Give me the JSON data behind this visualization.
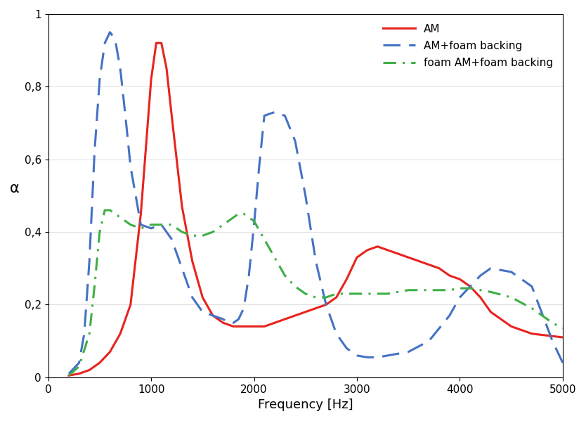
{
  "title": "",
  "xlabel": "Frequency [Hz]",
  "ylabel": "α",
  "xlim": [
    0,
    5000
  ],
  "ylim": [
    0,
    1
  ],
  "xticks": [
    0,
    1000,
    2000,
    3000,
    4000,
    5000
  ],
  "yticks": [
    0,
    0.2,
    0.4,
    0.6,
    0.8,
    1
  ],
  "ytick_labels": [
    "0",
    "0,2",
    "0,4",
    "0,6",
    "0,8",
    "1"
  ],
  "AM_x": [
    200,
    300,
    400,
    500,
    600,
    700,
    800,
    900,
    1000,
    1050,
    1100,
    1150,
    1200,
    1300,
    1400,
    1500,
    1600,
    1700,
    1800,
    1900,
    2000,
    2100,
    2200,
    2300,
    2500,
    2700,
    2800,
    2900,
    3000,
    3100,
    3200,
    3300,
    3400,
    3500,
    3600,
    3700,
    3800,
    3900,
    4000,
    4100,
    4200,
    4300,
    4500,
    4700,
    5000
  ],
  "AM_y": [
    0.005,
    0.01,
    0.02,
    0.04,
    0.07,
    0.12,
    0.2,
    0.45,
    0.82,
    0.92,
    0.92,
    0.85,
    0.72,
    0.47,
    0.32,
    0.22,
    0.17,
    0.15,
    0.14,
    0.14,
    0.14,
    0.14,
    0.15,
    0.16,
    0.18,
    0.2,
    0.22,
    0.27,
    0.33,
    0.35,
    0.36,
    0.35,
    0.34,
    0.33,
    0.32,
    0.31,
    0.3,
    0.28,
    0.27,
    0.25,
    0.22,
    0.18,
    0.14,
    0.12,
    0.11
  ],
  "foam_x": [
    200,
    300,
    400,
    450,
    500,
    550,
    600,
    650,
    700,
    750,
    800,
    900,
    1000,
    1100,
    1200,
    1300,
    1400,
    1500,
    1600,
    1700,
    1800,
    1850,
    1900,
    1950,
    2000,
    2100,
    2200,
    2300,
    2400,
    2500,
    2600,
    2700,
    2800,
    2900,
    3000,
    3100,
    3200,
    3300,
    3500,
    3700,
    3900,
    4000,
    4100,
    4200,
    4300,
    4500,
    4700,
    4900,
    5000
  ],
  "foam_y": [
    0.005,
    0.03,
    0.12,
    0.25,
    0.4,
    0.46,
    0.46,
    0.45,
    0.44,
    0.43,
    0.42,
    0.41,
    0.42,
    0.42,
    0.42,
    0.4,
    0.39,
    0.39,
    0.4,
    0.42,
    0.44,
    0.45,
    0.45,
    0.44,
    0.43,
    0.38,
    0.33,
    0.28,
    0.25,
    0.23,
    0.22,
    0.22,
    0.23,
    0.23,
    0.23,
    0.23,
    0.23,
    0.23,
    0.24,
    0.24,
    0.24,
    0.245,
    0.245,
    0.24,
    0.235,
    0.22,
    0.19,
    0.15,
    0.135
  ],
  "blue_x": [
    200,
    300,
    350,
    400,
    450,
    500,
    550,
    600,
    650,
    700,
    750,
    800,
    900,
    1000,
    1100,
    1200,
    1300,
    1400,
    1500,
    1600,
    1700,
    1750,
    1800,
    1850,
    1900,
    1950,
    2000,
    2050,
    2100,
    2200,
    2300,
    2400,
    2500,
    2600,
    2700,
    2800,
    2900,
    3000,
    3100,
    3200,
    3500,
    3700,
    3900,
    4000,
    4100,
    4200,
    4300,
    4500,
    4700,
    4900,
    5000
  ],
  "blue_y": [
    0.01,
    0.04,
    0.12,
    0.32,
    0.62,
    0.82,
    0.92,
    0.95,
    0.93,
    0.85,
    0.72,
    0.58,
    0.42,
    0.41,
    0.42,
    0.38,
    0.3,
    0.22,
    0.18,
    0.17,
    0.16,
    0.15,
    0.15,
    0.16,
    0.19,
    0.28,
    0.42,
    0.58,
    0.72,
    0.73,
    0.72,
    0.65,
    0.5,
    0.32,
    0.2,
    0.12,
    0.08,
    0.06,
    0.055,
    0.055,
    0.07,
    0.1,
    0.17,
    0.22,
    0.25,
    0.28,
    0.3,
    0.29,
    0.25,
    0.1,
    0.04
  ],
  "AM_color": "#e8231e",
  "foam_color": "#3daf45",
  "blue_color": "#4472c4",
  "AM_label": "AM",
  "foam_label": "foam AM+foam backing",
  "blue_label": "AM+foam backing",
  "AM_linestyle": "solid",
  "foam_linestyle": "dashdot",
  "blue_linestyle": "dashed",
  "linewidth": 2.2,
  "legend_fontsize": 11,
  "axis_fontsize": 13,
  "tick_fontsize": 11
}
